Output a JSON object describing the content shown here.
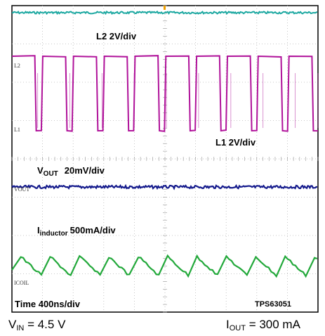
{
  "chart_data": {
    "type": "line",
    "title": "",
    "xlabel": "Time 400ns/div",
    "ylabel": "",
    "device_label": "TPS63051",
    "grid": true,
    "divisions": {
      "x": 10,
      "y": 8
    },
    "series": [
      {
        "name": "",
        "color": "#1aa7a0",
        "shape": "flat-noisy",
        "level_div": -0.2
      },
      {
        "name": "L2",
        "marker": "L2",
        "scale_label": "L2 2V/div",
        "color": "#b0129a",
        "shape": "square",
        "high_div": 1.55,
        "low_div": -0.35,
        "period_ns": 384
      },
      {
        "name": "L1",
        "marker": "L1",
        "scale_label": "L1 2V/div",
        "color": "#b0129a",
        "shape": "square",
        "high_div": 1.5,
        "low_div": -0.3,
        "period_ns": 384
      },
      {
        "name": "VOUT",
        "marker": "VOUT",
        "label_main": "V",
        "label_sub": "OUT",
        "scale": "20mV/div",
        "color": "#141a8c",
        "shape": "flat-noisy",
        "level_div": 0.0
      },
      {
        "name": "Iinductor",
        "marker": "ICOIL",
        "label_main": "I",
        "label_sub": "inductor",
        "scale": "500mA/div",
        "color": "#22a83a",
        "shape": "triangle",
        "peak_div": 0.45,
        "valley_div": -0.35,
        "period_ns": 384
      }
    ]
  },
  "conditions": {
    "vin": {
      "symbol": "V",
      "sub": "IN",
      "value": " = 4.5 V"
    },
    "iout": {
      "symbol": "I",
      "sub": "OUT",
      "value": " = 300 mA"
    }
  }
}
